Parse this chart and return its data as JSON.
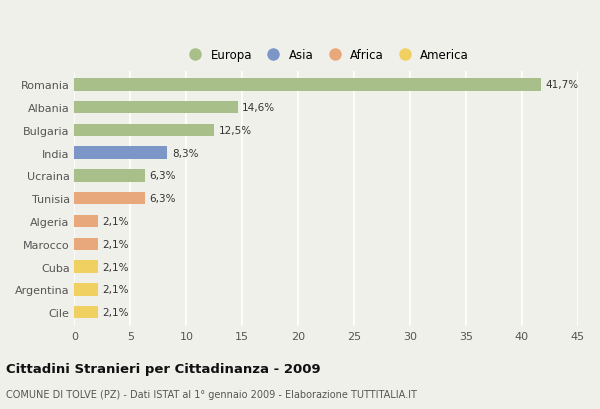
{
  "categories": [
    "Romania",
    "Albania",
    "Bulgaria",
    "India",
    "Ucraina",
    "Tunisia",
    "Algeria",
    "Marocco",
    "Cuba",
    "Argentina",
    "Cile"
  ],
  "values": [
    41.7,
    14.6,
    12.5,
    8.3,
    6.3,
    6.3,
    2.1,
    2.1,
    2.1,
    2.1,
    2.1
  ],
  "labels": [
    "41,7%",
    "14,6%",
    "12,5%",
    "8,3%",
    "6,3%",
    "6,3%",
    "2,1%",
    "2,1%",
    "2,1%",
    "2,1%",
    "2,1%"
  ],
  "colors": [
    "#a8bf8a",
    "#a8bf8a",
    "#a8bf8a",
    "#7b96c7",
    "#a8bf8a",
    "#e8a87c",
    "#e8a87c",
    "#e8a87c",
    "#f0d060",
    "#f0d060",
    "#f0d060"
  ],
  "legend_labels": [
    "Europa",
    "Asia",
    "Africa",
    "America"
  ],
  "legend_colors": [
    "#a8bf8a",
    "#7b96c7",
    "#e8a87c",
    "#f0d060"
  ],
  "title": "Cittadini Stranieri per Cittadinanza - 2009",
  "subtitle": "COMUNE DI TOLVE (PZ) - Dati ISTAT al 1° gennaio 2009 - Elaborazione TUTTITALIA.IT",
  "xlim": [
    0,
    45
  ],
  "xticks": [
    0,
    5,
    10,
    15,
    20,
    25,
    30,
    35,
    40,
    45
  ],
  "background_color": "#f0f0eb",
  "grid_color": "#ffffff",
  "bar_height": 0.55
}
